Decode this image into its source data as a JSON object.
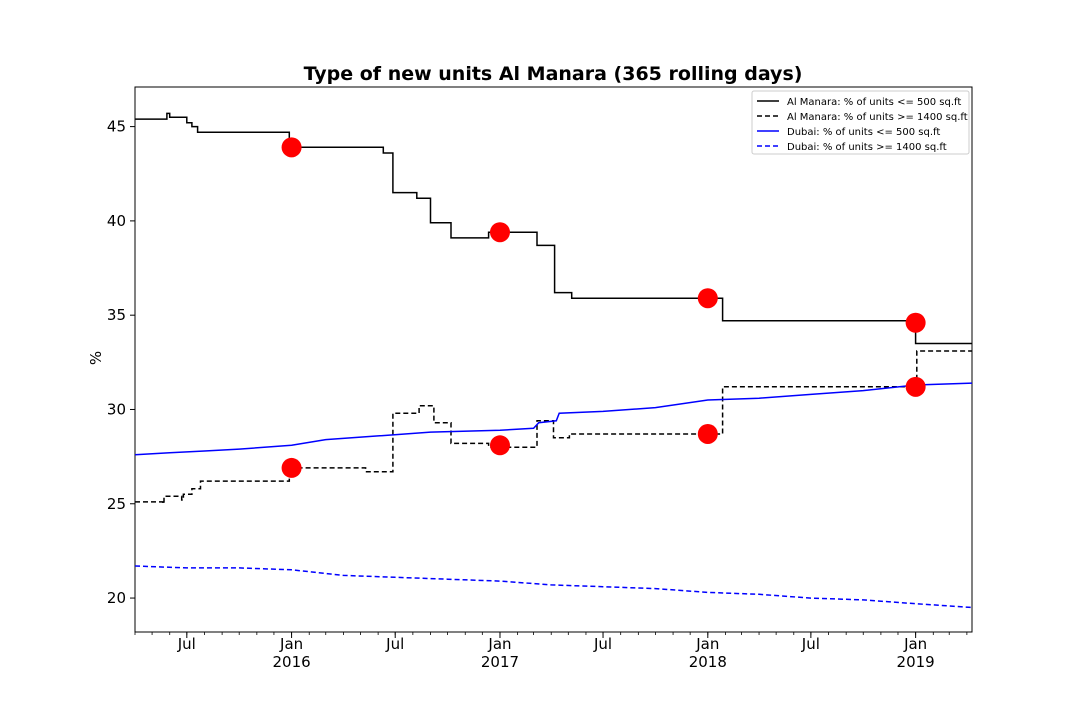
{
  "chart_data": {
    "type": "line",
    "title": "Type of new units Al Manara (365 rolling days)",
    "xlabel": "",
    "ylabel": "%",
    "ylim": [
      18.2,
      47.1
    ],
    "xlim": [
      "2015-04-01",
      "2019-04-10"
    ],
    "y_ticks": [
      20,
      25,
      30,
      35,
      40,
      45
    ],
    "x_ticks": [
      {
        "date": "2015-07-01",
        "label": "Jul",
        "sublabel": ""
      },
      {
        "date": "2016-01-01",
        "label": "Jan",
        "sublabel": "2016"
      },
      {
        "date": "2016-07-01",
        "label": "Jul",
        "sublabel": ""
      },
      {
        "date": "2017-01-01",
        "label": "Jan",
        "sublabel": "2017"
      },
      {
        "date": "2017-07-01",
        "label": "Jul",
        "sublabel": ""
      },
      {
        "date": "2018-01-01",
        "label": "Jan",
        "sublabel": "2018"
      },
      {
        "date": "2018-07-01",
        "label": "Jul",
        "sublabel": ""
      },
      {
        "date": "2019-01-01",
        "label": "Jan",
        "sublabel": "2019"
      }
    ],
    "legend_position": "top-right",
    "grid": false,
    "series": [
      {
        "name": "Al Manara: % of units <= 500 sq.ft",
        "color": "#000000",
        "style": "solid",
        "step": true,
        "points": [
          [
            "2015-04-01",
            45.4
          ],
          [
            "2015-05-25",
            45.4
          ],
          [
            "2015-05-27",
            45.7
          ],
          [
            "2015-06-01",
            45.5
          ],
          [
            "2015-06-28",
            45.5
          ],
          [
            "2015-07-01",
            45.2
          ],
          [
            "2015-07-10",
            45.0
          ],
          [
            "2015-07-20",
            44.7
          ],
          [
            "2015-12-25",
            44.7
          ],
          [
            "2015-12-28",
            43.9
          ],
          [
            "2016-06-05",
            43.9
          ],
          [
            "2016-06-10",
            43.6
          ],
          [
            "2016-06-25",
            43.6
          ],
          [
            "2016-06-27",
            41.5
          ],
          [
            "2016-08-05",
            41.5
          ],
          [
            "2016-08-08",
            41.2
          ],
          [
            "2016-08-30",
            41.2
          ],
          [
            "2016-09-01",
            39.9
          ],
          [
            "2016-10-05",
            39.9
          ],
          [
            "2016-10-07",
            39.1
          ],
          [
            "2016-12-10",
            39.1
          ],
          [
            "2016-12-12",
            39.4
          ],
          [
            "2017-03-05",
            39.4
          ],
          [
            "2017-03-07",
            38.7
          ],
          [
            "2017-04-05",
            38.7
          ],
          [
            "2017-04-07",
            36.2
          ],
          [
            "2017-05-05",
            36.2
          ],
          [
            "2017-05-07",
            35.9
          ],
          [
            "2018-01-25",
            35.9
          ],
          [
            "2018-01-27",
            34.7
          ],
          [
            "2018-12-28",
            34.7
          ],
          [
            "2019-01-01",
            33.5
          ],
          [
            "2019-04-10",
            33.5
          ]
        ]
      },
      {
        "name": "Al Manara: % of units >= 1400 sq.ft",
        "color": "#000000",
        "style": "dashed",
        "step": true,
        "points": [
          [
            "2015-04-01",
            25.1
          ],
          [
            "2015-05-15",
            25.1
          ],
          [
            "2015-05-20",
            25.0
          ],
          [
            "2015-05-22",
            25.4
          ],
          [
            "2015-06-20",
            25.4
          ],
          [
            "2015-06-22",
            25.2
          ],
          [
            "2015-06-25",
            25.5
          ],
          [
            "2015-07-10",
            25.8
          ],
          [
            "2015-07-25",
            26.2
          ],
          [
            "2015-12-25",
            26.2
          ],
          [
            "2015-12-28",
            26.9
          ],
          [
            "2016-05-05",
            26.9
          ],
          [
            "2016-05-10",
            26.7
          ],
          [
            "2016-06-25",
            26.7
          ],
          [
            "2016-06-27",
            29.8
          ],
          [
            "2016-08-10",
            29.8
          ],
          [
            "2016-08-12",
            30.2
          ],
          [
            "2016-09-05",
            30.2
          ],
          [
            "2016-09-07",
            29.3
          ],
          [
            "2016-10-05",
            29.3
          ],
          [
            "2016-10-07",
            28.2
          ],
          [
            "2016-12-10",
            28.2
          ],
          [
            "2016-12-12",
            28.0
          ],
          [
            "2017-03-05",
            28.0
          ],
          [
            "2017-03-07",
            29.4
          ],
          [
            "2017-04-03",
            29.4
          ],
          [
            "2017-04-05",
            28.5
          ],
          [
            "2017-05-01",
            28.5
          ],
          [
            "2017-05-03",
            28.7
          ],
          [
            "2018-01-25",
            28.7
          ],
          [
            "2018-01-27",
            31.2
          ],
          [
            "2019-01-01",
            31.2
          ],
          [
            "2019-01-03",
            33.1
          ],
          [
            "2019-04-10",
            33.1
          ]
        ]
      },
      {
        "name": "Dubai: % of units <= 500 sq.ft",
        "color": "#0000ff",
        "style": "solid",
        "step": false,
        "points": [
          [
            "2015-04-01",
            27.6
          ],
          [
            "2015-06-01",
            27.7
          ],
          [
            "2015-08-01",
            27.8
          ],
          [
            "2015-10-01",
            27.9
          ],
          [
            "2016-01-01",
            28.1
          ],
          [
            "2016-03-01",
            28.4
          ],
          [
            "2016-06-01",
            28.6
          ],
          [
            "2016-09-01",
            28.8
          ],
          [
            "2017-01-01",
            28.9
          ],
          [
            "2017-03-01",
            29.0
          ],
          [
            "2017-03-10",
            29.3
          ],
          [
            "2017-04-10",
            29.4
          ],
          [
            "2017-04-15",
            29.8
          ],
          [
            "2017-07-01",
            29.9
          ],
          [
            "2017-10-01",
            30.1
          ],
          [
            "2018-01-01",
            30.5
          ],
          [
            "2018-04-01",
            30.6
          ],
          [
            "2018-07-01",
            30.8
          ],
          [
            "2018-10-01",
            31.0
          ],
          [
            "2019-01-01",
            31.3
          ],
          [
            "2019-04-10",
            31.4
          ]
        ]
      },
      {
        "name": "Dubai: % of units >= 1400 sq.ft",
        "color": "#0000ff",
        "style": "dashed",
        "step": false,
        "points": [
          [
            "2015-04-01",
            21.7
          ],
          [
            "2015-07-01",
            21.6
          ],
          [
            "2015-10-01",
            21.6
          ],
          [
            "2016-01-01",
            21.5
          ],
          [
            "2016-04-01",
            21.2
          ],
          [
            "2016-07-01",
            21.1
          ],
          [
            "2016-10-01",
            21.0
          ],
          [
            "2017-01-01",
            20.9
          ],
          [
            "2017-04-01",
            20.7
          ],
          [
            "2017-07-01",
            20.6
          ],
          [
            "2017-10-01",
            20.5
          ],
          [
            "2018-01-01",
            20.3
          ],
          [
            "2018-04-01",
            20.2
          ],
          [
            "2018-07-01",
            20.0
          ],
          [
            "2018-10-01",
            19.9
          ],
          [
            "2019-01-01",
            19.7
          ],
          [
            "2019-04-10",
            19.5
          ]
        ]
      }
    ],
    "markers": {
      "color": "#ff0000",
      "points": [
        [
          "2016-01-01",
          43.9
        ],
        [
          "2017-01-01",
          39.4
        ],
        [
          "2018-01-01",
          35.9
        ],
        [
          "2019-01-01",
          34.6
        ],
        [
          "2016-01-01",
          26.9
        ],
        [
          "2017-01-01",
          28.1
        ],
        [
          "2018-01-01",
          28.7
        ],
        [
          "2019-01-01",
          31.2
        ]
      ]
    }
  }
}
